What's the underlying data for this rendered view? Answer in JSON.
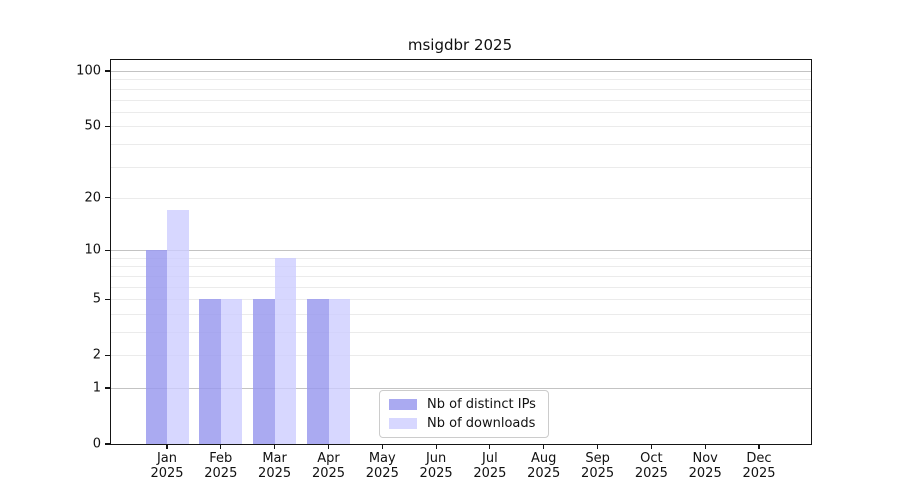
{
  "chart_data": {
    "type": "bar",
    "title": "msigdbr 2025",
    "x_categories": [
      "Jan",
      "Feb",
      "Mar",
      "Apr",
      "May",
      "Jun",
      "Jul",
      "Aug",
      "Sep",
      "Oct",
      "Nov",
      "Dec"
    ],
    "x_year": "2025",
    "series": [
      {
        "name": "Nb of distinct IPs",
        "color": "#9999ee",
        "alpha": 0.83,
        "values": [
          10,
          5,
          5,
          5,
          0,
          0,
          0,
          0,
          0,
          0,
          0,
          0
        ]
      },
      {
        "name": "Nb of downloads",
        "color": "#ccccff",
        "alpha": 0.78,
        "values": [
          17,
          5,
          9,
          5,
          0,
          0,
          0,
          0,
          0,
          0,
          0,
          0
        ]
      }
    ],
    "y_ticks": [
      0,
      1,
      2,
      5,
      10,
      20,
      50,
      100
    ],
    "y_scale": "log1p",
    "ylim": [
      0,
      115
    ],
    "grid": {
      "major": [
        1,
        10,
        100
      ],
      "minor": [
        2,
        3,
        4,
        5,
        6,
        7,
        8,
        9,
        20,
        30,
        40,
        50,
        60,
        70,
        80,
        90
      ]
    },
    "legend": {
      "position": "lower-center",
      "entries": [
        "Nb of distinct IPs",
        "Nb of downloads"
      ]
    }
  },
  "colors": {
    "grid_major": "#c3c3c3",
    "grid_minor": "#ebebeb",
    "spine": "#151515",
    "legend_border": "#cccccc",
    "background": "#ffffff"
  }
}
